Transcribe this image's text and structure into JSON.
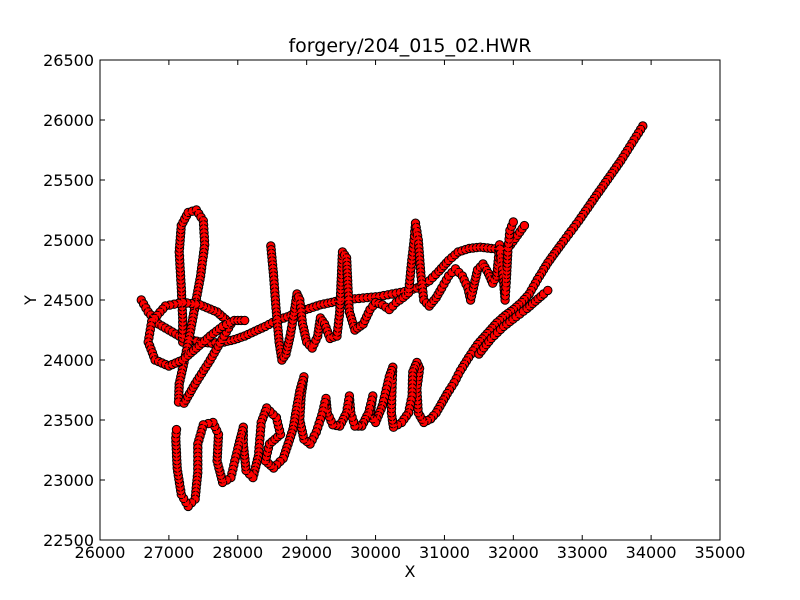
{
  "chart_data": {
    "type": "line",
    "title": "forgery/204_015_02.HWR",
    "xlabel": "X",
    "ylabel": "Y",
    "xlim": [
      26000,
      35000
    ],
    "ylim": [
      22500,
      26500
    ],
    "xticks": [
      26000,
      27000,
      28000,
      29000,
      30000,
      31000,
      32000,
      33000,
      34000,
      35000
    ],
    "yticks": [
      22500,
      23000,
      23500,
      24000,
      24500,
      25000,
      25500,
      26000,
      26500
    ],
    "grid": false,
    "colors": {
      "line": "#ff0000",
      "marker_fill": "#ff0000",
      "marker_edge": "#000000"
    },
    "series": [
      {
        "strokes": [
          [
            [
              33880,
              25950
            ],
            [
              33560,
              25660
            ],
            [
              33240,
              25400
            ],
            [
              32950,
              25160
            ],
            [
              32690,
              24960
            ],
            [
              32500,
              24810
            ],
            [
              32350,
              24670
            ],
            [
              32230,
              24550
            ],
            [
              32120,
              24480
            ],
            [
              32000,
              24420
            ],
            [
              31880,
              24370
            ],
            [
              31760,
              24310
            ],
            [
              31620,
              24220
            ],
            [
              31480,
              24130
            ],
            [
              31350,
              24020
            ],
            [
              31230,
              23910
            ],
            [
              31140,
              23810
            ],
            [
              31040,
              23720
            ],
            [
              30960,
              23640
            ],
            [
              30880,
              23560
            ],
            [
              30800,
              23510
            ]
          ],
          [
            [
              30800,
              23510
            ],
            [
              30700,
              23480
            ],
            [
              30620,
              23560
            ],
            [
              30600,
              23760
            ],
            [
              30640,
              23930
            ],
            [
              30600,
              23980
            ],
            [
              30540,
              23900
            ],
            [
              30530,
              23700
            ],
            [
              30480,
              23560
            ],
            [
              30380,
              23480
            ],
            [
              30260,
              23440
            ],
            [
              30230,
              23560
            ],
            [
              30240,
              23800
            ],
            [
              30250,
              23940
            ],
            [
              30200,
              23860
            ],
            [
              30100,
              23620
            ],
            [
              30000,
              23480
            ],
            [
              29920,
              23540
            ],
            [
              29960,
              23700
            ],
            [
              29900,
              23560
            ],
            [
              29800,
              23450
            ],
            [
              29700,
              23450
            ],
            [
              29640,
              23560
            ],
            [
              29620,
              23700
            ],
            [
              29580,
              23560
            ],
            [
              29480,
              23450
            ],
            [
              29380,
              23460
            ],
            [
              29300,
              23560
            ],
            [
              29280,
              23680
            ],
            [
              29220,
              23540
            ],
            [
              29140,
              23400
            ],
            [
              29050,
              23300
            ],
            [
              28960,
              23340
            ],
            [
              28900,
              23500
            ],
            [
              28920,
              23700
            ],
            [
              28960,
              23860
            ],
            [
              28900,
              23740
            ],
            [
              28800,
              23420
            ],
            [
              28660,
              23180
            ],
            [
              28520,
              23100
            ],
            [
              28400,
              23160
            ],
            [
              28460,
              23300
            ],
            [
              28620,
              23380
            ],
            [
              28560,
              23520
            ],
            [
              28420,
              23600
            ],
            [
              28340,
              23480
            ],
            [
              28300,
              23200
            ],
            [
              28220,
              23020
            ],
            [
              28120,
              23080
            ],
            [
              28080,
              23300
            ],
            [
              28080,
              23440
            ],
            [
              28000,
              23260
            ],
            [
              27900,
              23020
            ],
            [
              27780,
              22980
            ],
            [
              27700,
              23160
            ],
            [
              27720,
              23380
            ],
            [
              27640,
              23480
            ],
            [
              27500,
              23460
            ],
            [
              27420,
              23300
            ],
            [
              27420,
              23060
            ],
            [
              27380,
              22840
            ],
            [
              27280,
              22780
            ],
            [
              27180,
              22880
            ],
            [
              27120,
              23100
            ],
            [
              27100,
              23350
            ],
            [
              27110,
              23420
            ]
          ],
          [
            [
              26600,
              24500
            ],
            [
              26700,
              24400
            ],
            [
              26850,
              24300
            ],
            [
              27000,
              24250
            ],
            [
              27150,
              24200
            ],
            [
              27300,
              24170
            ],
            [
              27460,
              24150
            ],
            [
              27620,
              24140
            ],
            [
              27800,
              24150
            ],
            [
              27950,
              24170
            ],
            [
              28100,
              24200
            ],
            [
              28250,
              24240
            ],
            [
              28400,
              24280
            ],
            [
              28560,
              24330
            ],
            [
              28720,
              24360
            ],
            [
              28880,
              24400
            ],
            [
              29040,
              24430
            ],
            [
              29200,
              24460
            ],
            [
              29360,
              24480
            ],
            [
              29520,
              24500
            ],
            [
              29700,
              24510
            ],
            [
              29880,
              24520
            ],
            [
              30060,
              24530
            ],
            [
              30240,
              24550
            ],
            [
              30420,
              24570
            ],
            [
              30600,
              24600
            ],
            [
              30780,
              24660
            ],
            [
              30920,
              24740
            ],
            [
              31060,
              24830
            ],
            [
              31200,
              24900
            ],
            [
              31360,
              24930
            ],
            [
              31520,
              24940
            ],
            [
              31680,
              24930
            ],
            [
              31840,
              24920
            ],
            [
              31960,
              24960
            ],
            [
              32060,
              25040
            ],
            [
              32160,
              25120
            ]
          ],
          [
            [
              27200,
              24150
            ],
            [
              27200,
              24350
            ],
            [
              27180,
              24600
            ],
            [
              27150,
              24900
            ],
            [
              27180,
              25120
            ],
            [
              27280,
              25230
            ],
            [
              27400,
              25250
            ],
            [
              27500,
              25160
            ],
            [
              27520,
              24960
            ],
            [
              27460,
              24700
            ],
            [
              27380,
              24450
            ],
            [
              27300,
              24200
            ],
            [
              27220,
              23980
            ],
            [
              27150,
              23800
            ],
            [
              27140,
              23650
            ],
            [
              27220,
              23640
            ],
            [
              27380,
              23800
            ],
            [
              27600,
              24000
            ],
            [
              27800,
              24200
            ],
            [
              27900,
              24300
            ],
            [
              27700,
              24400
            ],
            [
              27450,
              24460
            ],
            [
              27200,
              24480
            ],
            [
              26950,
              24450
            ],
            [
              26750,
              24320
            ],
            [
              26700,
              24150
            ],
            [
              26800,
              24000
            ],
            [
              27000,
              23950
            ],
            [
              27200,
              24000
            ],
            [
              27400,
              24100
            ],
            [
              27600,
              24200
            ],
            [
              27780,
              24280
            ],
            [
              27950,
              24330
            ],
            [
              28100,
              24330
            ]
          ],
          [
            [
              28480,
              24950
            ],
            [
              28520,
              24700
            ],
            [
              28560,
              24400
            ],
            [
              28600,
              24150
            ],
            [
              28640,
              24000
            ],
            [
              28700,
              24050
            ],
            [
              28760,
              24200
            ],
            [
              28820,
              24400
            ],
            [
              28860,
              24550
            ],
            [
              28900,
              24500
            ],
            [
              28940,
              24300
            ],
            [
              29000,
              24150
            ],
            [
              29080,
              24100
            ],
            [
              29160,
              24200
            ],
            [
              29200,
              24350
            ],
            [
              29260,
              24300
            ],
            [
              29340,
              24180
            ],
            [
              29440,
              24200
            ],
            [
              29480,
              24400
            ],
            [
              29500,
              24650
            ],
            [
              29520,
              24900
            ],
            [
              29580,
              24850
            ],
            [
              29600,
              24600
            ],
            [
              29620,
              24400
            ],
            [
              29700,
              24250
            ],
            [
              29820,
              24300
            ],
            [
              29920,
              24420
            ],
            [
              30000,
              24480
            ],
            [
              30100,
              24460
            ],
            [
              30200,
              24420
            ],
            [
              30300,
              24480
            ],
            [
              30400,
              24520
            ],
            [
              30480,
              24560
            ],
            [
              30520,
              24800
            ],
            [
              30560,
              25000
            ],
            [
              30580,
              25140
            ],
            [
              30620,
              25000
            ],
            [
              30660,
              24700
            ],
            [
              30700,
              24500
            ],
            [
              30780,
              24450
            ],
            [
              30880,
              24520
            ],
            [
              30960,
              24600
            ],
            [
              31060,
              24700
            ],
            [
              31160,
              24760
            ],
            [
              31260,
              24700
            ],
            [
              31340,
              24600
            ],
            [
              31380,
              24500
            ],
            [
              31420,
              24600
            ],
            [
              31480,
              24750
            ],
            [
              31560,
              24800
            ],
            [
              31640,
              24720
            ],
            [
              31700,
              24640
            ],
            [
              31760,
              24700
            ],
            [
              31780,
              24820
            ],
            [
              31800,
              24960
            ],
            [
              31820,
              24850
            ],
            [
              31860,
              24650
            ],
            [
              31880,
              24500
            ],
            [
              31900,
              24680
            ],
            [
              31920,
              24900
            ],
            [
              31950,
              25080
            ],
            [
              32000,
              25150
            ]
          ],
          [
            [
              31500,
              24050
            ],
            [
              31680,
              24180
            ],
            [
              31860,
              24280
            ],
            [
              32040,
              24360
            ],
            [
              32200,
              24430
            ],
            [
              32320,
              24490
            ],
            [
              32440,
              24550
            ],
            [
              32500,
              24580
            ]
          ]
        ]
      }
    ]
  }
}
